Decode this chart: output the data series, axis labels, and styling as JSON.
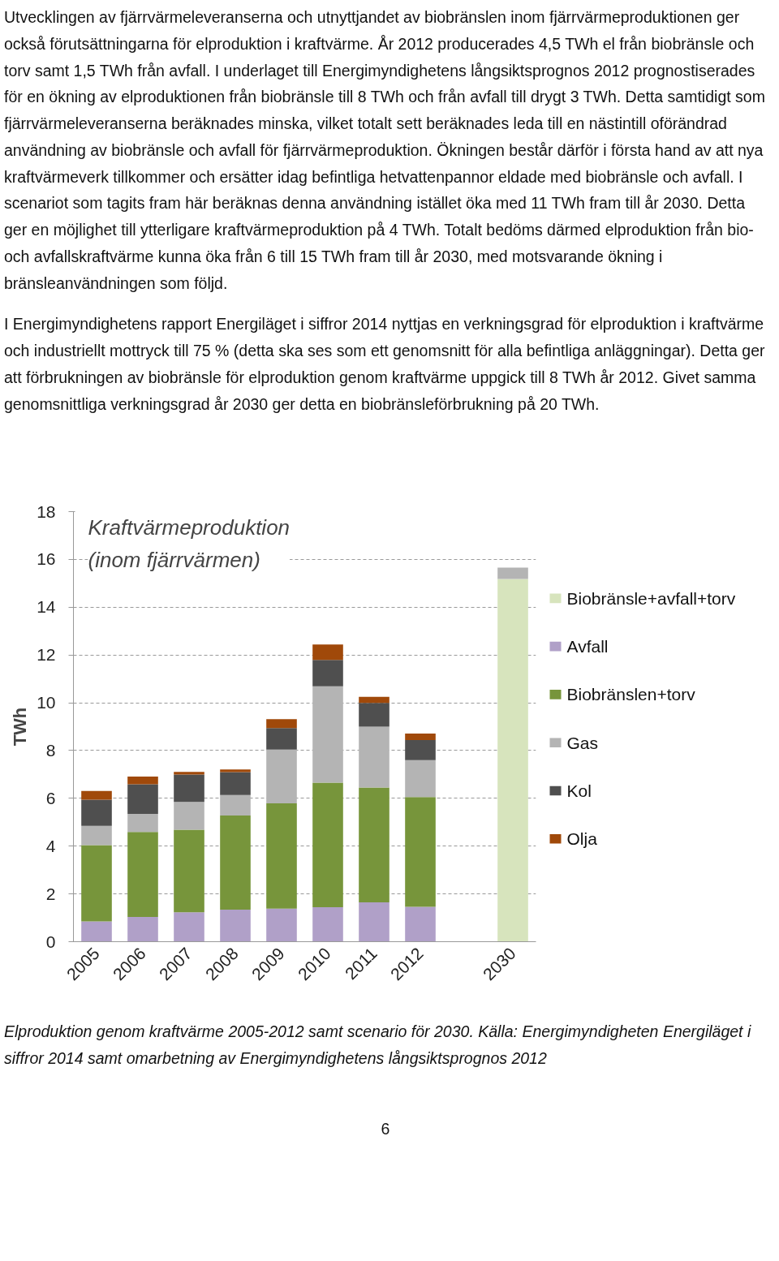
{
  "chart_data": {
    "type": "bar",
    "stacked": true,
    "title": "Kraftvärmeproduktion (inom fjärrvärmen)",
    "ylabel": "TWh",
    "categories": [
      "2005",
      "2006",
      "2007",
      "2008",
      "2009",
      "2010",
      "2011",
      "2012",
      null,
      "2030"
    ],
    "series": [
      {
        "name": "Biobränsle+avfall+torv",
        "color": "#d7e4bd",
        "values": [
          null,
          null,
          null,
          null,
          null,
          null,
          null,
          null,
          null,
          15.18
        ]
      },
      {
        "name": "Avfall",
        "color": "#b0a0c8",
        "values": [
          0.85,
          1.04,
          1.23,
          1.34,
          1.38,
          1.44,
          1.65,
          1.46,
          null,
          null
        ]
      },
      {
        "name": "Biobränslen+torv",
        "color": "#77953b",
        "values": [
          3.19,
          3.55,
          3.46,
          3.94,
          4.41,
          5.22,
          4.8,
          4.59,
          null,
          null
        ]
      },
      {
        "name": "Gas",
        "color": "#b4b4b4",
        "values": [
          0.81,
          0.76,
          1.16,
          0.86,
          2.25,
          4.03,
          2.55,
          1.55,
          null,
          0.48
        ]
      },
      {
        "name": "Kol",
        "color": "#4f4f4f",
        "values": [
          1.09,
          1.24,
          1.15,
          0.96,
          0.9,
          1.1,
          0.99,
          0.84,
          null,
          null
        ]
      },
      {
        "name": "Olja",
        "color": "#a0490a",
        "values": [
          0.37,
          0.32,
          0.11,
          0.11,
          0.37,
          0.65,
          0.26,
          0.27,
          null,
          null
        ]
      }
    ],
    "ylim": [
      0,
      18
    ],
    "yticks": [
      0,
      2,
      4,
      6,
      8,
      10,
      12,
      14,
      16,
      18
    ],
    "grid": "y",
    "legend": "right",
    "annotations": [
      "Utvecklingen av fjärrvärmeleveranserna och utnyttjandet av biobränslen inom fjärrvärmeproduktionen ger också förutsättningarna för elproduktion i kraftvärme. År 2012 producerades 4,5 TWh el från biobränsle och torv samt 1,5 TWh från avfall. I underlaget till Energimyndighetens långsiktsprognos 2012 prognostiserades för en ökning av elproduktionen från biobränsle till 8 TWh och från avfall till drygt 3 TWh. Detta samtidigt som fjärrvärmeleveranserna beräknades minska, vilket totalt sett beräknades leda till en nästintill oförändrad användning av biobränsle och avfall för fjärrvärmeproduktion. Ökningen består därför i första hand av att nya kraftvärmeverk tillkommer och ersätter idag befintliga hetvattenpannor eldade med biobränsle och avfall. I scenariot som tagits fram här beräknas denna användning istället öka med 11 TWh fram till år 2030. Detta ger en möjlighet till ytterligare kraftvärmeproduktion på 4 TWh. Totalt bedöms därmed elproduktion från bio- och avfallskraftvärme kunna öka från 6 till 15 TWh fram till år 2030, med motsvarande ökning i bränsleanvändningen som följd.",
      "I Energimyndighetens rapport Energiläget i siffror 2014 nyttjas en verkningsgrad för elproduktion i kraftvärme och industriellt mottryck till 75 % (detta ska ses som ett genomsnitt för alla befintliga anläggningar). Detta ger att förbrukningen av biobränsle för elproduktion genom kraftvärme uppgick till 8 TWh år 2012. Givet samma genomsnittliga verkningsgrad år 2030 ger detta en biobränsleförbrukning på 20 TWh.",
      "Elproduktion genom kraftvärme 2005-2012 samt scenario för 2030. Källa: Energimyndigheten Energiläget i siffror 2014 samt omarbetning av Energimyndighetens långsiktsprognos 2012",
      "6"
    ]
  }
}
